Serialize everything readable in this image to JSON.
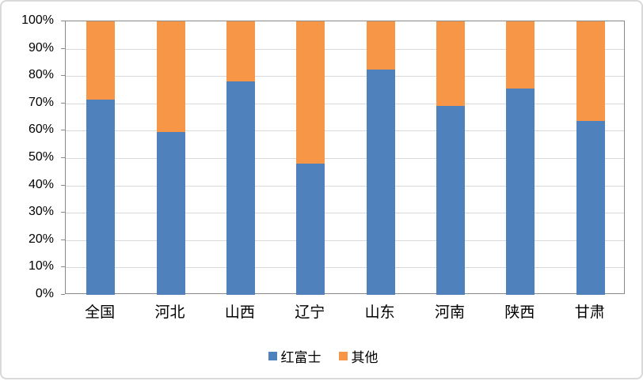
{
  "chart_data": {
    "type": "bar",
    "subtype": "stacked-100-percent-column",
    "title": "",
    "categories": [
      "全国",
      "河北",
      "山西",
      "辽宁",
      "山东",
      "河南",
      "陕西",
      "甘肃"
    ],
    "series": [
      {
        "name": "红富士",
        "color": "#4F81BD",
        "values": [
          71.5,
          59.5,
          78,
          48,
          82.5,
          69,
          75.5,
          63.5
        ]
      },
      {
        "name": "其他",
        "color": "#F79646",
        "values": [
          28.5,
          40.5,
          22,
          52,
          17.5,
          31,
          24.5,
          36.5
        ]
      }
    ],
    "xlabel": "",
    "ylabel": "",
    "ylim": [
      0,
      100
    ],
    "y_tick_step": 10,
    "y_tick_labels": [
      "0%",
      "10%",
      "20%",
      "30%",
      "40%",
      "50%",
      "60%",
      "70%",
      "80%",
      "90%",
      "100%"
    ],
    "grid": true,
    "legend_position": "bottom"
  },
  "legend": {
    "items": [
      {
        "label": "红富士",
        "color": "#4F81BD"
      },
      {
        "label": "其他",
        "color": "#F79646"
      }
    ]
  },
  "colors": {
    "series_fuji": "#4F81BD",
    "series_other": "#F79646",
    "gridline": "#D9D9D9",
    "axis_line": "#898989",
    "frame_border": "#D9D9D9",
    "background": "#FFFFFF",
    "label_text": "#000000"
  }
}
